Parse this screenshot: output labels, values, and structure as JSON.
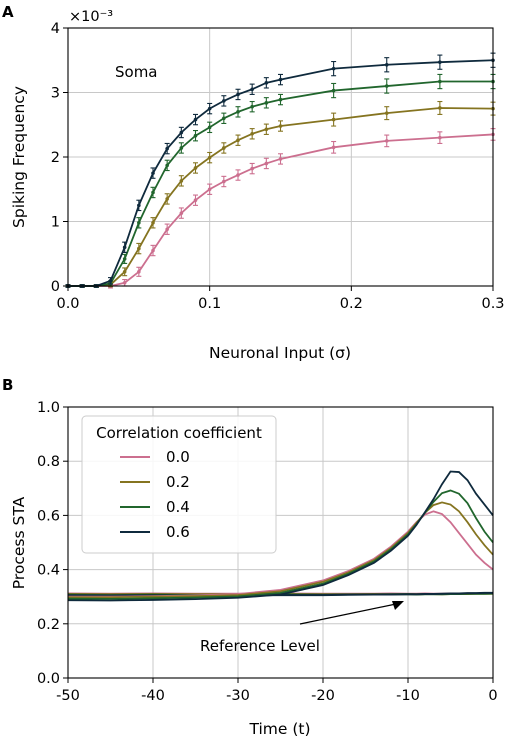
{
  "figure": {
    "panel_a_label": "A",
    "panel_b_label": "B",
    "colors": {
      "0.0": "#cc6f8f",
      "0.2": "#857420",
      "0.4": "#21662d",
      "0.6": "#0f2a3d"
    }
  },
  "chart_data": [
    {
      "type": "line",
      "panel": "A",
      "annotation": "Soma",
      "xlabel": "Neuronal Input (σ)",
      "ylabel": "Spiking Frequency",
      "y_offset_label": "×10⁻³",
      "xlim": [
        0.0,
        0.3
      ],
      "ylim": [
        0,
        4
      ],
      "xticks": [
        "0.0",
        "0.1",
        "0.2",
        "0.3"
      ],
      "xtick_values": [
        0.0,
        0.1,
        0.2,
        0.3
      ],
      "yticks": [
        "0",
        "1",
        "2",
        "3",
        "4"
      ],
      "ytick_values": [
        0,
        1,
        2,
        3,
        4
      ],
      "grid": true,
      "error_bars": true,
      "x": [
        0.0,
        0.01,
        0.02,
        0.03,
        0.04,
        0.05,
        0.06,
        0.07,
        0.08,
        0.09,
        0.1,
        0.11,
        0.12,
        0.13,
        0.14,
        0.15,
        0.1875,
        0.225,
        0.2625,
        0.3
      ],
      "series": [
        {
          "name": "0.0",
          "values": [
            0,
            0,
            0,
            0,
            0.05,
            0.22,
            0.55,
            0.88,
            1.13,
            1.33,
            1.5,
            1.62,
            1.72,
            1.82,
            1.9,
            1.97,
            2.15,
            2.25,
            2.3,
            2.35
          ],
          "error": [
            0.02,
            0.02,
            0.02,
            0.03,
            0.05,
            0.07,
            0.08,
            0.08,
            0.08,
            0.08,
            0.08,
            0.08,
            0.08,
            0.08,
            0.08,
            0.08,
            0.09,
            0.09,
            0.09,
            0.09
          ]
        },
        {
          "name": "0.2",
          "values": [
            0,
            0,
            0,
            0.02,
            0.22,
            0.58,
            0.98,
            1.35,
            1.63,
            1.83,
            1.99,
            2.14,
            2.26,
            2.36,
            2.43,
            2.48,
            2.58,
            2.68,
            2.76,
            2.75
          ],
          "error": [
            0.02,
            0.02,
            0.02,
            0.03,
            0.06,
            0.08,
            0.08,
            0.08,
            0.08,
            0.08,
            0.08,
            0.08,
            0.08,
            0.08,
            0.08,
            0.08,
            0.1,
            0.1,
            0.1,
            0.1
          ]
        },
        {
          "name": "0.4",
          "values": [
            0,
            0,
            0,
            0.04,
            0.42,
            0.98,
            1.45,
            1.87,
            2.14,
            2.33,
            2.46,
            2.6,
            2.7,
            2.78,
            2.84,
            2.89,
            3.03,
            3.1,
            3.17,
            3.17
          ],
          "error": [
            0.02,
            0.02,
            0.02,
            0.04,
            0.07,
            0.08,
            0.08,
            0.08,
            0.08,
            0.08,
            0.08,
            0.08,
            0.08,
            0.08,
            0.08,
            0.08,
            0.11,
            0.11,
            0.11,
            0.11
          ]
        },
        {
          "name": "0.6",
          "values": [
            0,
            0,
            0,
            0.08,
            0.6,
            1.25,
            1.75,
            2.13,
            2.38,
            2.58,
            2.75,
            2.87,
            2.97,
            3.05,
            3.15,
            3.2,
            3.37,
            3.43,
            3.47,
            3.5
          ],
          "error": [
            0.02,
            0.02,
            0.02,
            0.05,
            0.08,
            0.08,
            0.08,
            0.08,
            0.08,
            0.08,
            0.08,
            0.08,
            0.08,
            0.08,
            0.08,
            0.08,
            0.11,
            0.11,
            0.11,
            0.11
          ]
        }
      ]
    },
    {
      "type": "line",
      "panel": "B",
      "xlabel": "Time (t)",
      "ylabel": "Process STA",
      "xlim": [
        -50,
        0
      ],
      "ylim": [
        0.0,
        1.0
      ],
      "xticks": [
        "-50",
        "-40",
        "-30",
        "-20",
        "-10",
        "0"
      ],
      "xtick_values": [
        -50,
        -40,
        -30,
        -20,
        -10,
        0
      ],
      "yticks": [
        "0.0",
        "0.2",
        "0.4",
        "0.6",
        "0.8",
        "1.0"
      ],
      "ytick_values": [
        0.0,
        0.2,
        0.4,
        0.6,
        0.8,
        1.0
      ],
      "grid": true,
      "legend": {
        "title": "Correlation coefficient",
        "location": "upper left"
      },
      "annotation": {
        "text": "Reference Level",
        "arrow_to": [
          -10,
          0.31
        ]
      },
      "x": [
        -50,
        -45,
        -40,
        -35,
        -30,
        -25,
        -20,
        -17,
        -14,
        -12,
        -10,
        -9,
        -8,
        -7,
        -6,
        -5,
        -4,
        -3,
        -2,
        -1,
        0
      ],
      "series": [
        {
          "name": "0.0",
          "values": [
            0.3,
            0.3,
            0.302,
            0.305,
            0.31,
            0.325,
            0.36,
            0.395,
            0.44,
            0.485,
            0.54,
            0.575,
            0.603,
            0.615,
            0.605,
            0.575,
            0.535,
            0.495,
            0.455,
            0.425,
            0.4
          ]
        },
        {
          "name": "0.2",
          "values": [
            0.298,
            0.298,
            0.3,
            0.302,
            0.306,
            0.32,
            0.355,
            0.39,
            0.435,
            0.48,
            0.535,
            0.572,
            0.61,
            0.638,
            0.648,
            0.64,
            0.615,
            0.575,
            0.53,
            0.49,
            0.455
          ]
        },
        {
          "name": "0.4",
          "values": [
            0.293,
            0.292,
            0.294,
            0.297,
            0.301,
            0.314,
            0.348,
            0.385,
            0.43,
            0.475,
            0.53,
            0.568,
            0.61,
            0.65,
            0.682,
            0.692,
            0.68,
            0.645,
            0.59,
            0.54,
            0.5
          ]
        },
        {
          "name": "0.6",
          "values": [
            0.287,
            0.286,
            0.288,
            0.291,
            0.296,
            0.308,
            0.343,
            0.38,
            0.425,
            0.47,
            0.525,
            0.565,
            0.612,
            0.66,
            0.715,
            0.762,
            0.76,
            0.73,
            0.68,
            0.64,
            0.6
          ]
        }
      ],
      "reference_levels": [
        {
          "name": "0.0",
          "values": [
            0.312,
            0.311,
            0.312,
            0.311,
            0.311,
            0.312,
            0.311,
            0.311,
            0.311,
            0.312,
            0.311,
            0.311,
            0.312,
            0.311,
            0.311,
            0.312,
            0.311,
            0.311,
            0.312,
            0.312,
            0.312
          ]
        },
        {
          "name": "0.2",
          "values": [
            0.31,
            0.309,
            0.31,
            0.309,
            0.309,
            0.31,
            0.309,
            0.309,
            0.31,
            0.309,
            0.31,
            0.309,
            0.31,
            0.31,
            0.309,
            0.31,
            0.31,
            0.31,
            0.311,
            0.311,
            0.311
          ]
        },
        {
          "name": "0.4",
          "values": [
            0.307,
            0.306,
            0.307,
            0.306,
            0.307,
            0.308,
            0.307,
            0.308,
            0.308,
            0.309,
            0.309,
            0.308,
            0.309,
            0.309,
            0.309,
            0.31,
            0.31,
            0.311,
            0.311,
            0.311,
            0.312
          ]
        },
        {
          "name": "0.6",
          "values": [
            0.305,
            0.304,
            0.305,
            0.304,
            0.305,
            0.306,
            0.306,
            0.307,
            0.308,
            0.308,
            0.309,
            0.309,
            0.31,
            0.31,
            0.311,
            0.312,
            0.312,
            0.313,
            0.313,
            0.314,
            0.314
          ]
        }
      ]
    }
  ]
}
